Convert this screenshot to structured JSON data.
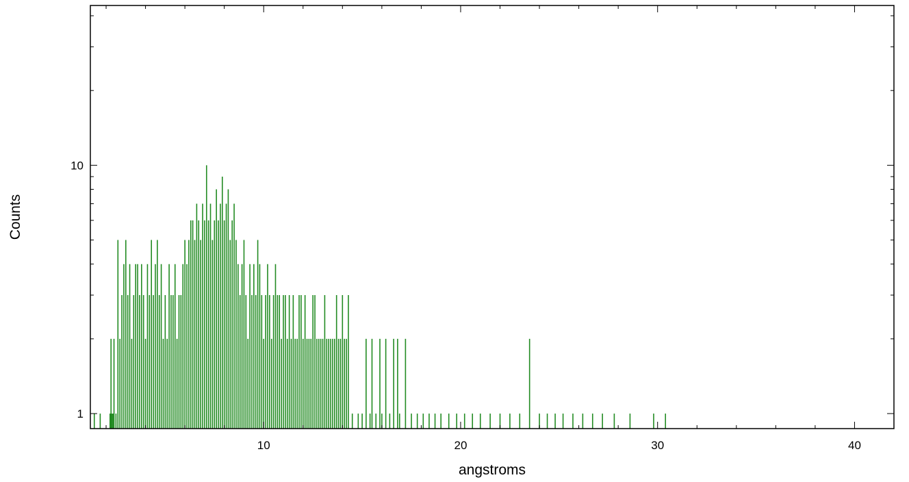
{
  "chart_data": {
    "type": "bar",
    "title": "",
    "xlabel": "angstroms",
    "ylabel": "Counts",
    "xlim": [
      1.2,
      42
    ],
    "ylim": [
      0.87,
      44
    ],
    "y_scale": "log",
    "x_ticks": [
      10,
      20,
      30,
      40
    ],
    "x_tick_labels": [
      "10",
      "20",
      "30",
      "40"
    ],
    "y_ticks": [
      1,
      10
    ],
    "y_tick_labels": [
      "1",
      "10"
    ],
    "grid": false,
    "color": "#228B22",
    "series": [
      {
        "x": [
          1.4,
          1.7,
          2.2,
          2.25,
          2.3,
          2.35,
          2.4,
          2.5,
          2.6,
          2.7,
          2.8,
          2.9,
          3.0,
          3.1,
          3.2,
          3.3,
          3.4,
          3.5,
          3.6,
          3.7,
          3.8,
          3.9,
          4.0,
          4.1,
          4.2,
          4.3,
          4.4,
          4.5,
          4.6,
          4.7,
          4.8,
          4.9,
          5.0,
          5.1,
          5.2,
          5.3,
          5.4,
          5.5,
          5.6,
          5.7,
          5.8,
          5.9,
          6.0,
          6.1,
          6.2,
          6.3,
          6.4,
          6.5,
          6.6,
          6.7,
          6.8,
          6.9,
          7.0,
          7.1,
          7.2,
          7.3,
          7.4,
          7.5,
          7.6,
          7.7,
          7.8,
          7.9,
          8.0,
          8.1,
          8.2,
          8.3,
          8.4,
          8.5,
          8.6,
          8.7,
          8.8,
          8.9,
          9.0,
          9.1,
          9.2,
          9.3,
          9.4,
          9.5,
          9.6,
          9.7,
          9.8,
          9.9,
          10.0,
          10.1,
          10.2,
          10.3,
          10.4,
          10.5,
          10.6,
          10.7,
          10.8,
          10.9,
          11.0,
          11.1,
          11.2,
          11.3,
          11.4,
          11.5,
          11.6,
          11.7,
          11.8,
          11.9,
          12.0,
          12.1,
          12.2,
          12.3,
          12.4,
          12.5,
          12.6,
          12.7,
          12.8,
          12.9,
          13.0,
          13.1,
          13.2,
          13.3,
          13.4,
          13.5,
          13.6,
          13.7,
          13.8,
          13.9,
          14.0,
          14.1,
          14.2,
          14.3,
          14.5,
          14.8,
          15.0,
          15.2,
          15.4,
          15.5,
          15.7,
          15.9,
          16.0,
          16.2,
          16.4,
          16.6,
          16.8,
          16.9,
          17.2,
          17.5,
          17.8,
          18.1,
          18.4,
          18.7,
          19.0,
          19.4,
          19.8,
          20.2,
          20.6,
          21.0,
          21.5,
          22.0,
          22.5,
          23.0,
          23.5,
          24.0,
          24.4,
          24.8,
          25.2,
          25.7,
          26.2,
          26.7,
          27.2,
          27.8,
          28.6,
          29.8,
          30.4
        ],
        "values": [
          1,
          1,
          1,
          2,
          1,
          1,
          2,
          1,
          5,
          2,
          3,
          4,
          5,
          3,
          4,
          2,
          3,
          4,
          4,
          3,
          4,
          3,
          2,
          4,
          3,
          5,
          3,
          4,
          5,
          3,
          4,
          2,
          3,
          2,
          4,
          3,
          3,
          4,
          2,
          3,
          3,
          4,
          5,
          4,
          5,
          6,
          6,
          5,
          7,
          6,
          5,
          7,
          6,
          10,
          6,
          7,
          5,
          6,
          8,
          6,
          7,
          9,
          6,
          7,
          8,
          5,
          6,
          7,
          5,
          4,
          3,
          4,
          5,
          3,
          2,
          4,
          3,
          4,
          3,
          5,
          4,
          3,
          2,
          3,
          4,
          3,
          2,
          3,
          4,
          3,
          3,
          2,
          3,
          3,
          2,
          3,
          2,
          3,
          2,
          2,
          3,
          3,
          2,
          3,
          2,
          2,
          2,
          3,
          3,
          2,
          2,
          2,
          2,
          3,
          2,
          2,
          2,
          2,
          2,
          3,
          2,
          2,
          3,
          2,
          2,
          3,
          1,
          1,
          1,
          2,
          1,
          2,
          1,
          2,
          1,
          2,
          1,
          2,
          2,
          1,
          2,
          1,
          1,
          1,
          1,
          1,
          1,
          1,
          1,
          1,
          1,
          1,
          1,
          1,
          1,
          1,
          2,
          1,
          1,
          1,
          1,
          1,
          1,
          1,
          1,
          1,
          1,
          1,
          1
        ]
      }
    ]
  }
}
